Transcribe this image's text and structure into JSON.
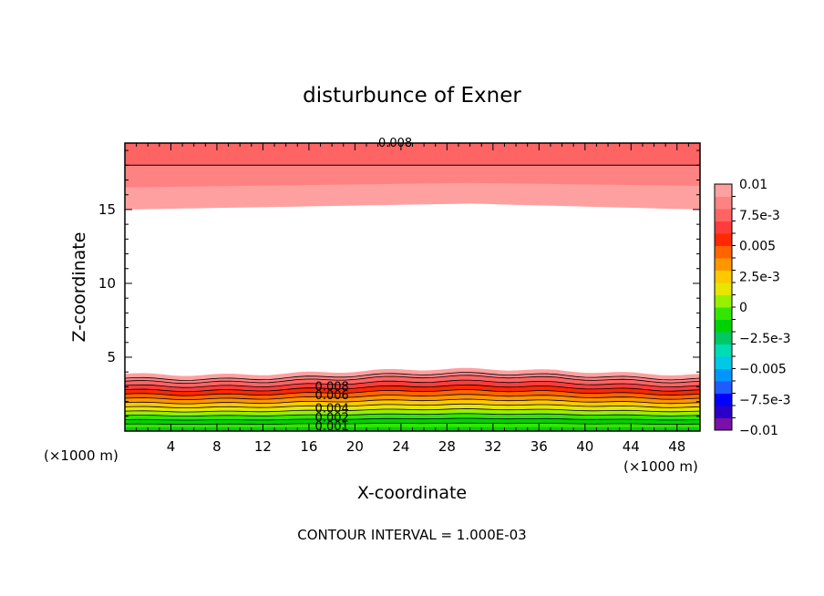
{
  "chart_data": {
    "type": "contour",
    "title": "disturbunce of Exner",
    "xlabel": "X-coordinate",
    "ylabel": "Z-coordinate",
    "x_unit_left": "(×1000 m)",
    "x_unit_right": "(×1000 m)",
    "footer": "CONTOUR INTERVAL = 1.000E-03",
    "xlim": [
      0,
      50
    ],
    "ylim": [
      0,
      19.5
    ],
    "x_ticks": [
      4,
      8,
      12,
      16,
      20,
      24,
      28,
      32,
      36,
      40,
      44,
      48
    ],
    "y_ticks": [
      5,
      10,
      15
    ],
    "colorbar": {
      "min": -0.01,
      "max": 0.01,
      "labels": [
        {
          "value": 0.01,
          "text": "0.01"
        },
        {
          "value": 0.0075,
          "text": "7.5e-3"
        },
        {
          "value": 0.005,
          "text": "0.005"
        },
        {
          "value": 0.0025,
          "text": "2.5e-3"
        },
        {
          "value": 0,
          "text": "0"
        },
        {
          "value": -0.0025,
          "text": "−2.5e-3"
        },
        {
          "value": -0.005,
          "text": "−0.005"
        },
        {
          "value": -0.0075,
          "text": "−7.5e-3"
        },
        {
          "value": -0.01,
          "text": "−0.01"
        }
      ],
      "colors": [
        "#7a10a8",
        "#2a00c8",
        "#0000ff",
        "#1e5cff",
        "#0096ff",
        "#00c8e6",
        "#00dcb4",
        "#00c864",
        "#00d200",
        "#32e600",
        "#96f000",
        "#e6e600",
        "#ffc800",
        "#ff9600",
        "#ff6400",
        "#ff2800",
        "#ff3c3c",
        "#ff6464",
        "#ff8282",
        "#ffa0a0"
      ]
    },
    "top_field": {
      "label": "0.008",
      "bands": [
        {
          "z_bottom_left": 19.5,
          "z_bottom_mid": 19.5,
          "z_bottom_right": 19.5,
          "color": "#ff3c3c"
        },
        {
          "z_bottom_left": 18.0,
          "z_bottom_mid": 18.0,
          "z_bottom_right": 18.0,
          "color": "#ff6464"
        },
        {
          "z_bottom_left": 16.5,
          "z_bottom_mid": 16.8,
          "z_bottom_right": 16.6,
          "color": "#ff8282"
        },
        {
          "z_bottom_left": 15.0,
          "z_bottom_mid": 15.4,
          "z_bottom_right": 15.0,
          "color": "#ffa0a0"
        }
      ]
    },
    "bottom_field": {
      "labels": [
        {
          "x": 18,
          "z": 3.0,
          "text": "0.008"
        },
        {
          "x": 18,
          "z": 2.4,
          "text": "0.006"
        },
        {
          "x": 18,
          "z": 1.5,
          "text": "0.004"
        },
        {
          "x": 18,
          "z": 0.9,
          "text": "0.002"
        },
        {
          "x": 18,
          "z": 0.3,
          "text": "0.001"
        }
      ],
      "bands": [
        {
          "z_top": 4.0,
          "color": "#ffa0a0"
        },
        {
          "z_top": 3.7,
          "color": "#ff8282"
        },
        {
          "z_top": 3.5,
          "color": "#ff6464"
        },
        {
          "z_top": 3.2,
          "color": "#ff3c3c"
        },
        {
          "z_top": 2.9,
          "color": "#ff2800"
        },
        {
          "z_top": 2.6,
          "color": "#ff6400"
        },
        {
          "z_top": 2.3,
          "color": "#ff9600"
        },
        {
          "z_top": 2.0,
          "color": "#ffc800"
        },
        {
          "z_top": 1.7,
          "color": "#e6e600"
        },
        {
          "z_top": 1.4,
          "color": "#96f000"
        },
        {
          "z_top": 1.1,
          "color": "#32e600"
        },
        {
          "z_top": 0.8,
          "color": "#00d200"
        },
        {
          "z_top": 0.5,
          "color": "#32e600"
        },
        {
          "z_top": 0.25,
          "color": "#00d200"
        }
      ]
    }
  }
}
